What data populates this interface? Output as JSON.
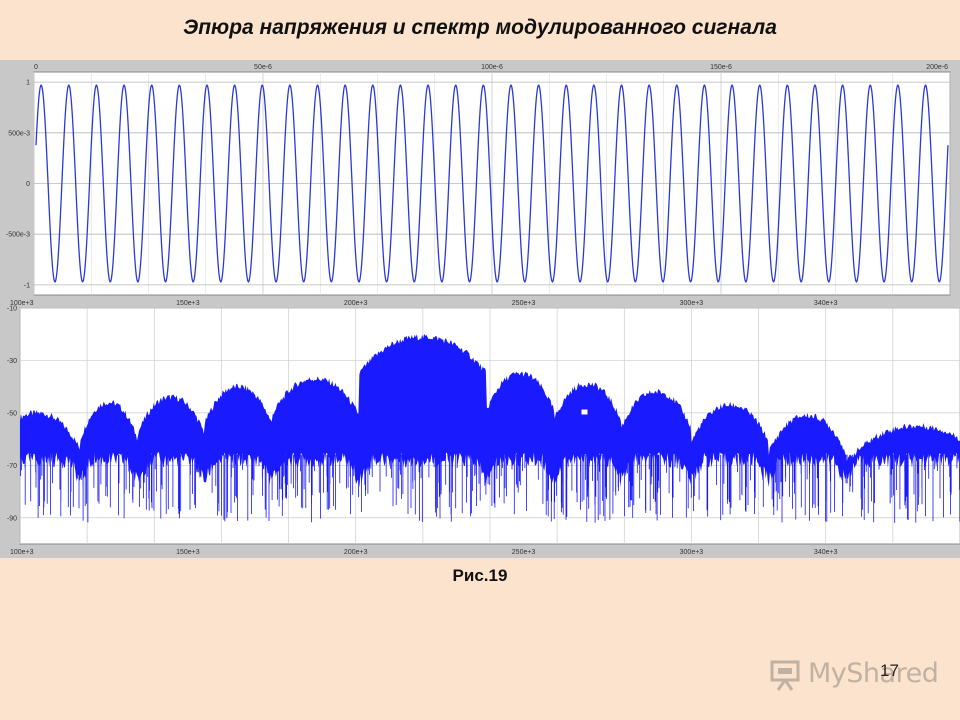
{
  "slide": {
    "title": "Эпюра напряжения и спектр модулированного сигнала",
    "caption": "Рис.19",
    "page_number": "17",
    "watermark": "MyShared"
  },
  "colors": {
    "background": "#fbe3cd",
    "panel": "#c8c8c8",
    "signal": "#1a1aff",
    "plot_bg": "#ffffff"
  },
  "chart_data": [
    {
      "type": "line",
      "title": "",
      "xlabel": "",
      "ylabel": "",
      "xlim": [
        0,
        0.0002
      ],
      "ylim": [
        -1.1,
        1.1
      ],
      "x_ticks": [
        "0",
        "50e-6",
        "100e-6",
        "150e-6",
        "200e-6"
      ],
      "y_ticks": [
        "1",
        "500e-3",
        "0",
        "-500e-3",
        "-1"
      ],
      "y_tick_values": [
        1,
        0.5,
        0,
        -0.5,
        -1
      ],
      "grid": true,
      "series": [
        {
          "amplitude": 0.97,
          "cycles_in_window": 33
        }
      ]
    },
    {
      "type": "area",
      "title": "",
      "xlabel": "",
      "ylabel": "",
      "xlim": [
        100000,
        380000
      ],
      "ylim": [
        -100,
        -10
      ],
      "x_ticks": [
        "100e+3",
        "150e+3",
        "200e+3",
        "250e+3",
        "300e+3",
        "340e+3"
      ],
      "x_tick_values": [
        100000,
        150000,
        200000,
        250000,
        300000,
        340000
      ],
      "y_ticks": [
        "-10",
        "-30",
        "-50",
        "-70",
        "-90"
      ],
      "y_tick_values": [
        -10,
        -30,
        -50,
        -70,
        -90
      ],
      "grid": true,
      "lobe_peaks_x": [
        105000,
        125000,
        145000,
        165000,
        185000,
        220000,
        250000,
        268000,
        289000,
        311000,
        334000,
        356000
      ],
      "lobe_peaks_db": [
        -50,
        -46,
        -44,
        -40,
        -37,
        -21,
        -35,
        -39,
        -42,
        -47,
        -51,
        -55
      ],
      "nulls_x": [
        118000,
        135000,
        155000,
        175000,
        201000,
        239000,
        259000,
        279000,
        300000,
        323000,
        346000
      ]
    }
  ]
}
